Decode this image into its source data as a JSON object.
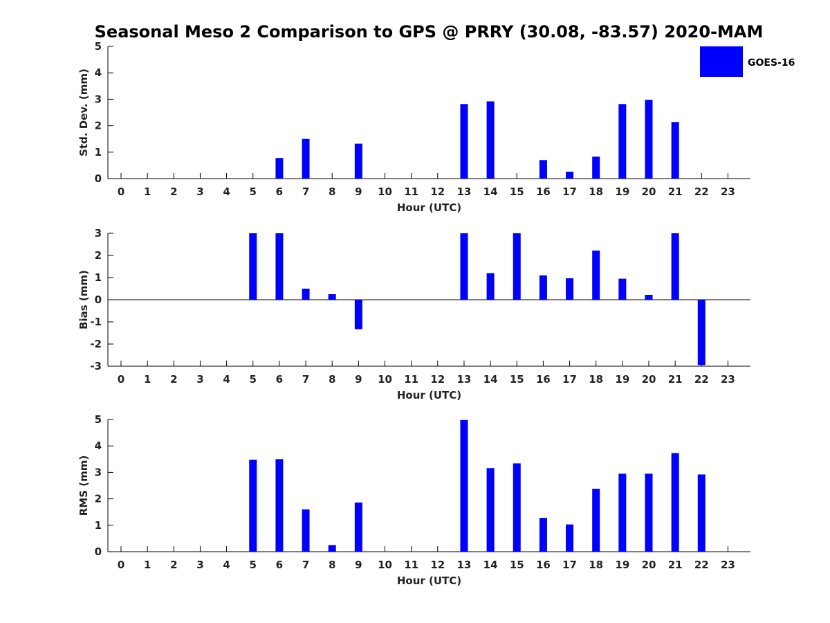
{
  "chart_data": {
    "title": "Seasonal Meso 2 Comparison to GPS @ PRRY (30.08, -83.57) 2020-MAM",
    "legend": {
      "label": "GOES-16",
      "color": "#0000ff",
      "placement": "top-right"
    },
    "bar_color": "#0000ff",
    "panels": [
      {
        "type": "bar",
        "name": "std-dev",
        "ylabel": "Std. Dev. (mm)",
        "xlabel": "Hour (UTC)",
        "ylim": [
          0,
          5
        ],
        "yticks": [
          0,
          1,
          2,
          3,
          4,
          5
        ],
        "zero_line": false,
        "x": [
          0,
          1,
          2,
          3,
          4,
          5,
          6,
          7,
          8,
          9,
          10,
          11,
          12,
          13,
          14,
          15,
          16,
          17,
          18,
          19,
          20,
          21,
          22,
          23
        ],
        "values": [
          null,
          null,
          null,
          null,
          null,
          null,
          0.78,
          1.5,
          null,
          1.32,
          null,
          null,
          null,
          2.82,
          2.92,
          null,
          0.7,
          0.26,
          0.83,
          2.82,
          2.98,
          2.14,
          null,
          null
        ]
      },
      {
        "type": "bar",
        "name": "bias",
        "ylabel": "Bias (mm)",
        "xlabel": "Hour (UTC)",
        "ylim": [
          -3,
          3
        ],
        "yticks": [
          -3,
          -2,
          -1,
          0,
          1,
          2,
          3
        ],
        "zero_line": true,
        "x": [
          0,
          1,
          2,
          3,
          4,
          5,
          6,
          7,
          8,
          9,
          10,
          11,
          12,
          13,
          14,
          15,
          16,
          17,
          18,
          19,
          20,
          21,
          22,
          23
        ],
        "values": [
          null,
          null,
          null,
          null,
          null,
          3.0,
          3.0,
          0.5,
          0.25,
          -1.33,
          null,
          null,
          null,
          3.0,
          1.2,
          3.0,
          1.1,
          0.97,
          2.22,
          0.95,
          0.22,
          3.0,
          -2.95,
          null
        ]
      },
      {
        "type": "bar",
        "name": "rms",
        "ylabel": "RMS (mm)",
        "xlabel": "Hour (UTC)",
        "ylim": [
          0,
          5
        ],
        "yticks": [
          0,
          1,
          2,
          3,
          4,
          5
        ],
        "zero_line": false,
        "x": [
          0,
          1,
          2,
          3,
          4,
          5,
          6,
          7,
          8,
          9,
          10,
          11,
          12,
          13,
          14,
          15,
          16,
          17,
          18,
          19,
          20,
          21,
          22,
          23
        ],
        "values": [
          null,
          null,
          null,
          null,
          null,
          3.48,
          3.5,
          1.6,
          0.25,
          1.86,
          null,
          null,
          null,
          4.98,
          3.16,
          3.34,
          1.28,
          1.03,
          2.38,
          2.95,
          2.95,
          3.73,
          2.92,
          null
        ]
      }
    ]
  }
}
